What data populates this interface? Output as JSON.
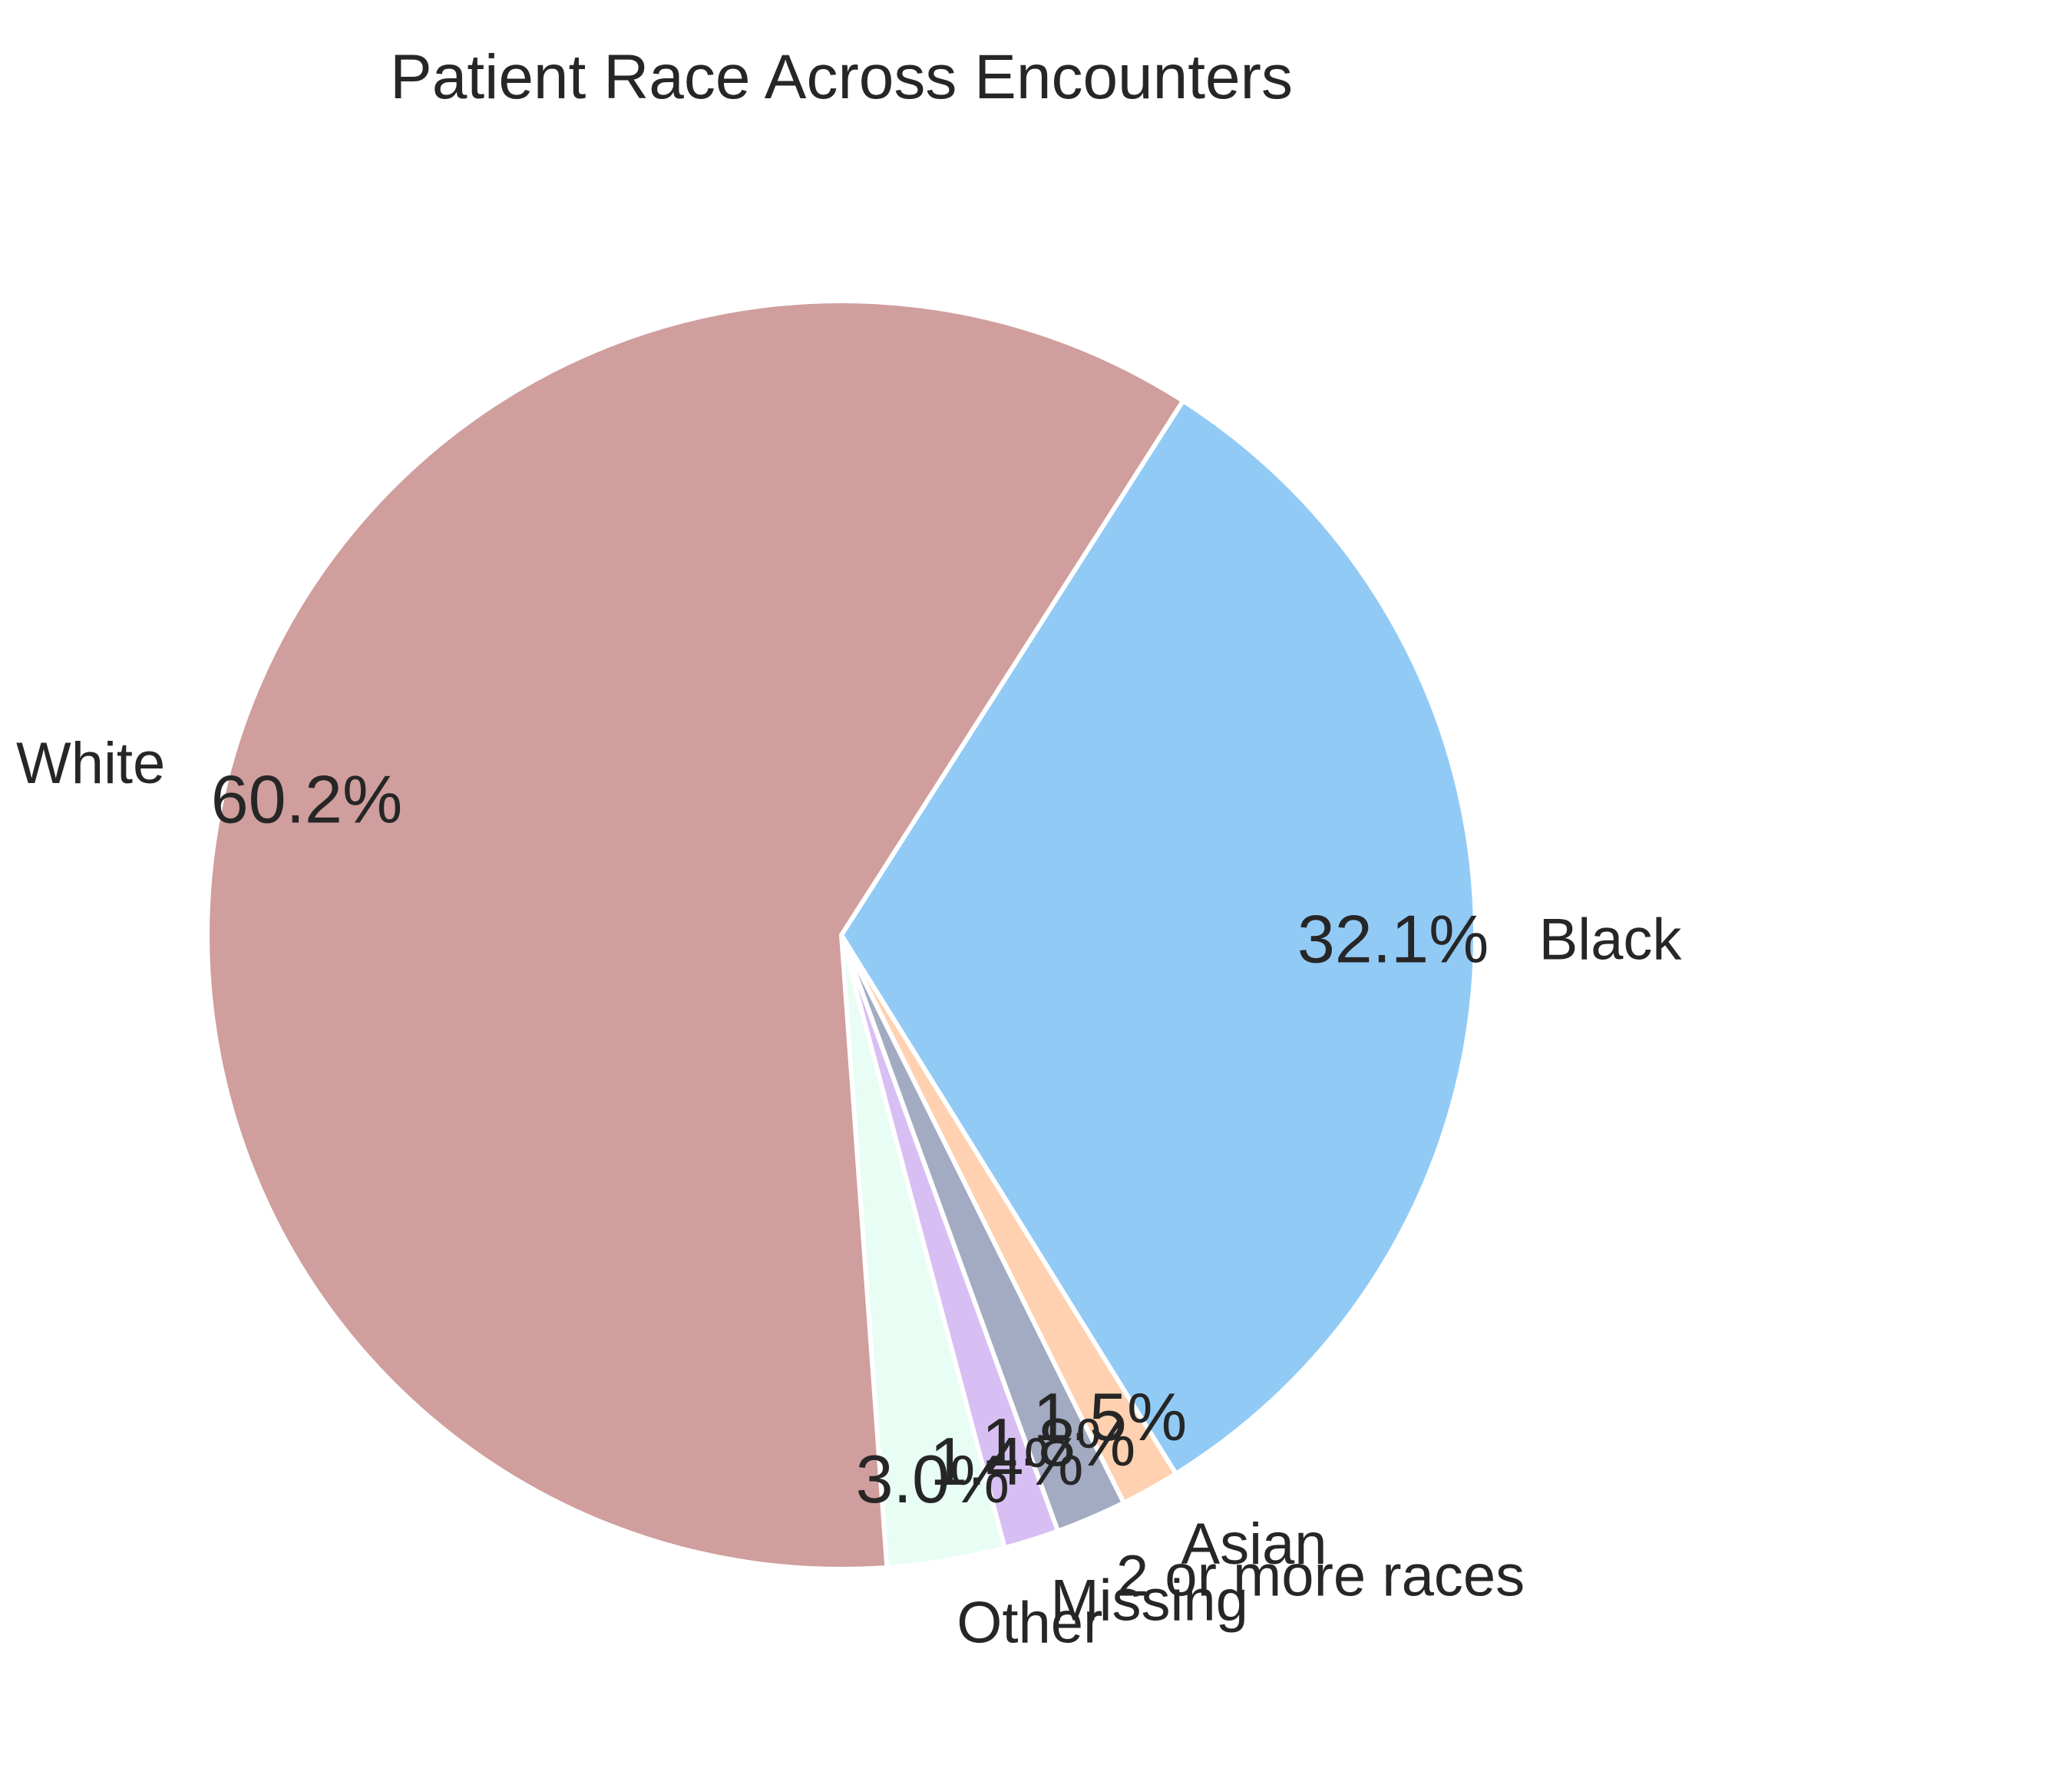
{
  "chart_data": {
    "type": "pie",
    "title": "Patient Race Across Encounters",
    "slices": [
      {
        "label": "Black",
        "value": 32.1,
        "pct_label": "32.1%",
        "color": "#92caf6"
      },
      {
        "label": "Asian",
        "value": 1.5,
        "pct_label": "1.5%",
        "color": "#ffd1b0"
      },
      {
        "label": "2 or more races",
        "value": 1.8,
        "pct_label": "1.8%",
        "color": "#a3abc2"
      },
      {
        "label": "Missing",
        "value": 1.4,
        "pct_label": "1.4%",
        "color": "#d8bff3"
      },
      {
        "label": "Other",
        "value": 3.0,
        "pct_label": "3.0%",
        "color": "#e8fdf3"
      },
      {
        "label": "White",
        "value": 60.2,
        "pct_label": "60.2%",
        "color": "#cf9e9d"
      }
    ],
    "start_angle_deg": 57.4,
    "direction": "clockwise",
    "legend": "none"
  }
}
